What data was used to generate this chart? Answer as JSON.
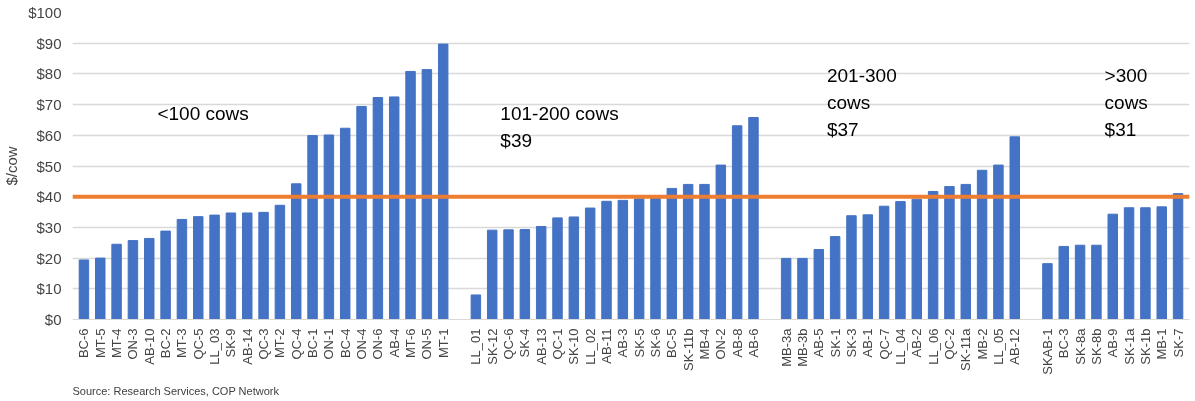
{
  "chart_data": {
    "type": "bar",
    "ylabel": "$/cow",
    "categories": [
      "BC-6",
      "MT-5",
      "MT-4",
      "ON-3",
      "AB-10",
      "BC-2",
      "MT-3",
      "QC-5",
      "LL_03",
      "SK-9",
      "AB-14",
      "QC-3",
      "MT-2",
      "QC-4",
      "BC-1",
      "ON-1",
      "BC-4",
      "ON-4",
      "ON-6",
      "AB-4",
      "MT-6",
      "ON-5",
      "MT-1",
      null,
      "LL_01",
      "SK-12",
      "QC-6",
      "SK-4",
      "AB-13",
      "QC-1",
      "SK-10",
      "LL_02",
      "AB-11",
      "AB-3",
      "SK-5",
      "SK-6",
      "BC-5",
      "SK-11b",
      "MB-4",
      "ON-2",
      "AB-8",
      "AB-6",
      null,
      "MB-3a",
      "MB-3b",
      "AB-5",
      "SK-1",
      "SK-3",
      "AB-1",
      "QC-7",
      "LL_04",
      "AB-2",
      "LL_06",
      "QC-2",
      "SK-11a",
      "MB-2",
      "LL_05",
      "AB-12",
      null,
      "SKAB-1",
      "BC-3",
      "SK-8a",
      "SK-8b",
      "AB-9",
      "SK-1a",
      "SK-1b",
      "MB-1",
      "SK-7"
    ],
    "values": [
      19.4,
      20.0,
      24.5,
      25.7,
      26.4,
      28.8,
      32.6,
      33.5,
      34.0,
      34.7,
      34.7,
      34.9,
      37.2,
      44.2,
      59.9,
      60.1,
      62.3,
      69.4,
      72.3,
      72.5,
      80.8,
      81.4,
      89.7,
      null,
      8.0,
      29.1,
      29.2,
      29.3,
      30.3,
      33.1,
      33.4,
      36.3,
      38.5,
      38.8,
      39.3,
      39.5,
      42.7,
      44.0,
      44.0,
      50.3,
      63.1,
      65.8,
      null,
      19.9,
      19.9,
      22.8,
      27.0,
      33.8,
      34.1,
      36.9,
      38.4,
      39.2,
      41.7,
      43.3,
      44.0,
      48.6,
      50.3,
      59.5,
      null,
      18.2,
      23.8,
      24.2,
      24.2,
      34.3,
      36.4,
      36.4,
      36.7,
      41.0
    ],
    "color": "#4472c4",
    "ylim": [
      0,
      100
    ],
    "yticks": [
      {
        "value": 0,
        "label": "$0"
      },
      {
        "value": 10,
        "label": "$10"
      },
      {
        "value": 20,
        "label": "$20"
      },
      {
        "value": 30,
        "label": "$30"
      },
      {
        "value": 40,
        "label": "$40"
      },
      {
        "value": 50,
        "label": "$50"
      },
      {
        "value": 60,
        "label": "$60"
      },
      {
        "value": 70,
        "label": "$70"
      },
      {
        "value": 80,
        "label": "$80"
      },
      {
        "value": 90,
        "label": "$90"
      },
      {
        "value": 100,
        "label": "$100"
      }
    ],
    "grid": "y",
    "ref_lines": [
      {
        "axis": "y",
        "value": 40,
        "color": "#ed7d31"
      }
    ],
    "annotations": [
      "<100 cows",
      "101-200 cows\n$39",
      "201-300\ncows\n$37",
      ">300\ncows\n$31",
      "Source: Research Services, COP Network"
    ]
  }
}
